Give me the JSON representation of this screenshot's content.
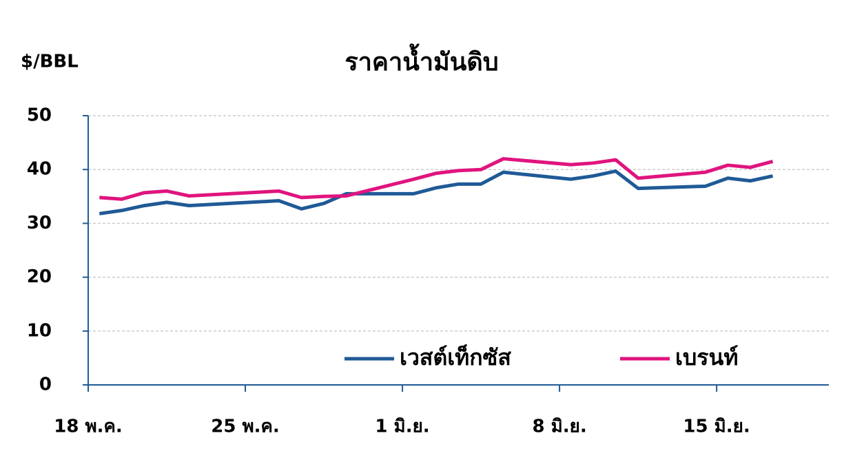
{
  "chart_data": {
    "type": "line",
    "title": "ราคาน้ำมันดิบ",
    "y_label": "$/BBL",
    "x": [
      0.5,
      1.5,
      2.5,
      3.5,
      4.5,
      8.5,
      9.5,
      10.5,
      11.5,
      14.5,
      15.5,
      16.5,
      17.5,
      18.5,
      21.5,
      22.5,
      23.5,
      24.5,
      27.5,
      28.5,
      29.5,
      30.5
    ],
    "series": [
      {
        "name": "เวสต์เท็กซัส",
        "color": "#1f5a96",
        "values": [
          31.8,
          32.4,
          33.3,
          33.9,
          33.3,
          34.2,
          32.7,
          33.7,
          35.5,
          35.5,
          36.6,
          37.3,
          37.3,
          39.5,
          38.2,
          38.8,
          39.7,
          36.5,
          36.9,
          38.4,
          37.9,
          38.8
        ]
      },
      {
        "name": "เบรนท์",
        "color": "#e0147e",
        "values": [
          34.8,
          34.5,
          35.7,
          36.0,
          35.1,
          36.0,
          34.8,
          35.0,
          35.1,
          38.2,
          39.3,
          39.8,
          40.0,
          42.0,
          40.9,
          41.2,
          41.8,
          38.4,
          39.5,
          40.8,
          40.4,
          41.5
        ]
      }
    ],
    "xlim": [
      0,
      33
    ],
    "xticks": [
      {
        "value": 0,
        "label": "18 พ.ค."
      },
      {
        "value": 7,
        "label": "25 พ.ค."
      },
      {
        "value": 14,
        "label": "1 มิ.ย."
      },
      {
        "value": 21,
        "label": "8 มิ.ย."
      },
      {
        "value": 28,
        "label": "15 มิ.ย."
      }
    ],
    "ylim": [
      0,
      50
    ],
    "yticks": [
      0,
      10,
      20,
      30,
      40,
      50
    ],
    "grid": true
  }
}
